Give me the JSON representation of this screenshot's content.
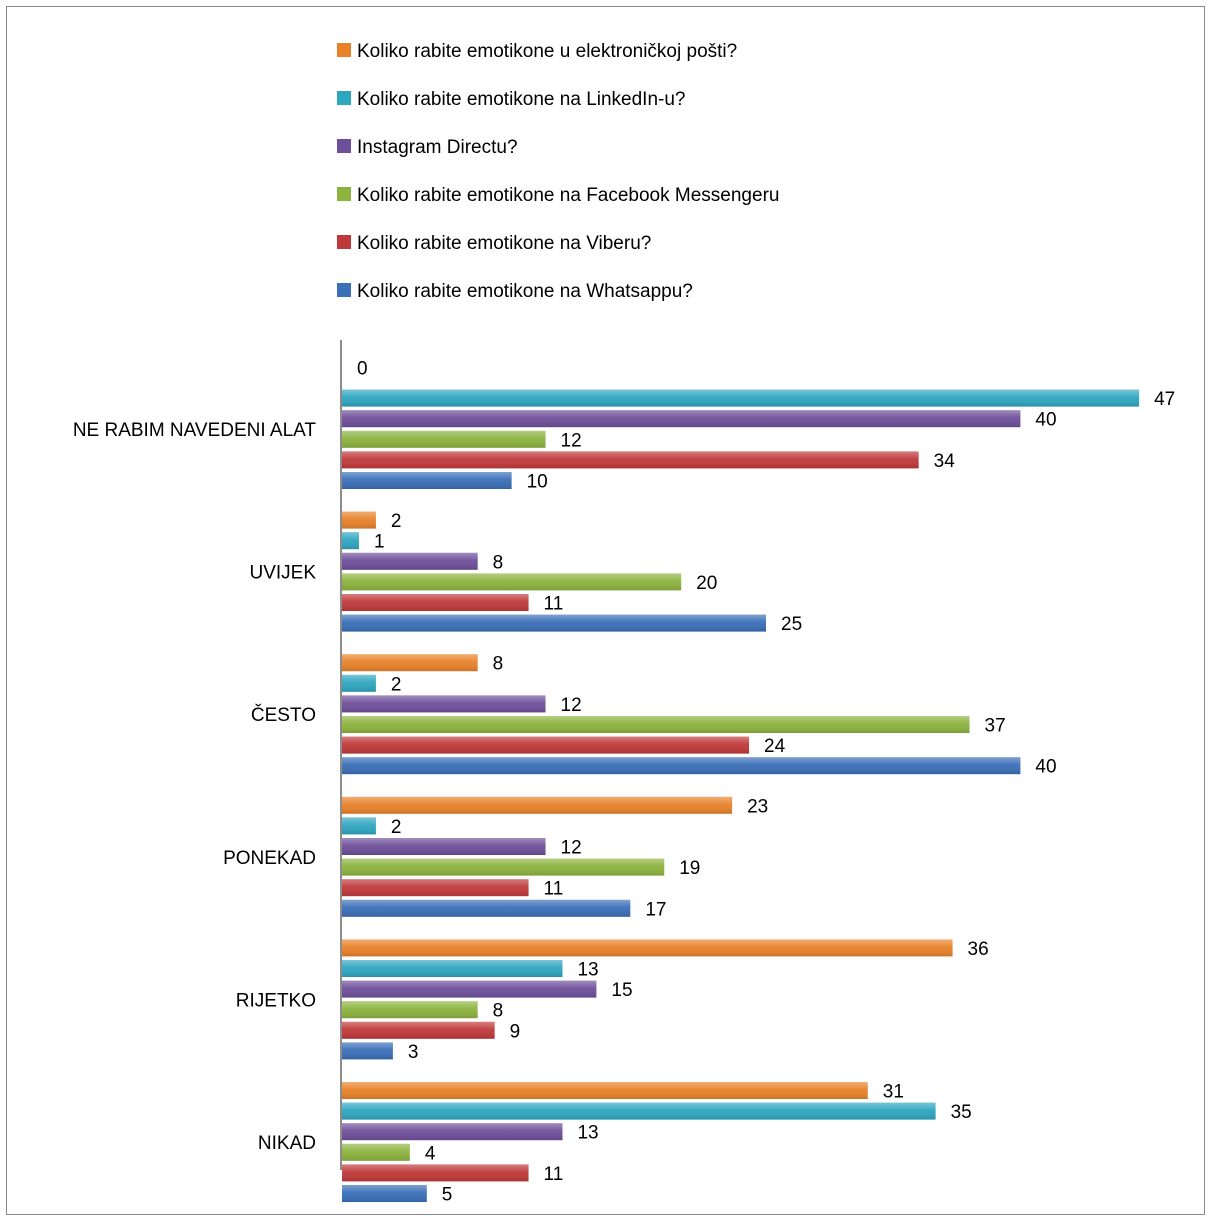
{
  "chart_data": {
    "type": "bar",
    "orientation": "horizontal",
    "categories": [
      "NE RABIM NAVEDENI ALAT",
      "UVIJEK",
      "ČESTO",
      "PONEKAD",
      "RIJETKO",
      "NIKAD"
    ],
    "series": [
      {
        "name": "Koliko rabite emotikone u elektroničkoj pošti?",
        "color": "#e8822a",
        "values": [
          0,
          2,
          8,
          23,
          36,
          31
        ]
      },
      {
        "name": "Koliko rabite emotikone na LinkedIn-u?",
        "color": "#2fa6c0",
        "values": [
          47,
          1,
          2,
          2,
          13,
          35
        ]
      },
      {
        "name": "Instagram Directu?",
        "color": "#6e4f9a",
        "values": [
          40,
          8,
          12,
          12,
          15,
          13
        ]
      },
      {
        "name": "Koliko rabite emotikone na Facebook Messengeru",
        "color": "#8db33f",
        "values": [
          12,
          20,
          37,
          19,
          8,
          4
        ]
      },
      {
        "name": "Koliko rabite emotikone na Viberu?",
        "color": "#c0393a",
        "values": [
          34,
          11,
          24,
          11,
          9,
          11
        ]
      },
      {
        "name": "Koliko rabite emotikone na Whatsappu?",
        "color": "#3a6fb8",
        "values": [
          10,
          25,
          40,
          17,
          3,
          5
        ]
      }
    ],
    "xlim": [
      0,
      47
    ],
    "legend_position": "top",
    "data_labels": true,
    "grid": false
  }
}
